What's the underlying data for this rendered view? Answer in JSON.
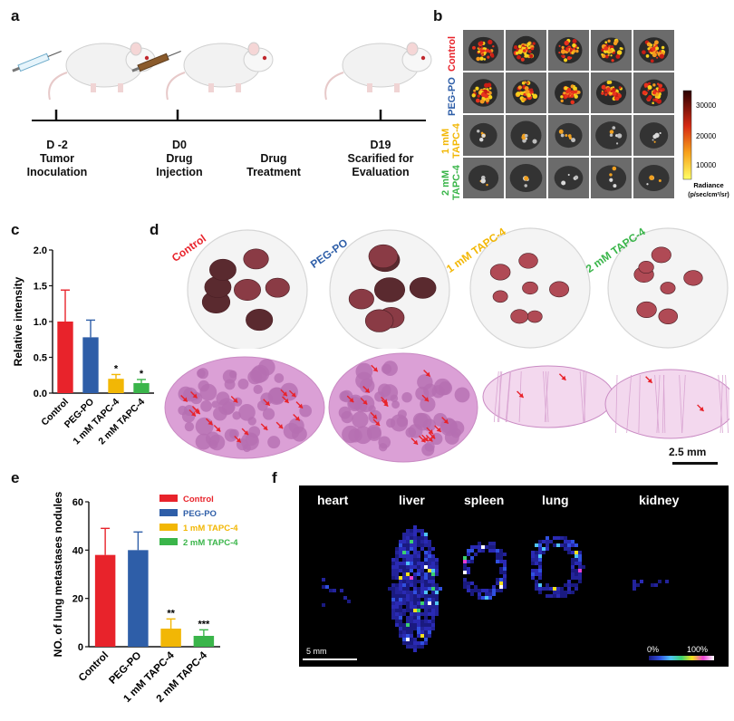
{
  "panels": {
    "a": "a",
    "b": "b",
    "c": "c",
    "d": "d",
    "e": "e",
    "f": "f"
  },
  "timeline": {
    "events": [
      {
        "day": "D -2",
        "desc_line1": "Tumor",
        "desc_line2": "Inoculation"
      },
      {
        "day": "D0",
        "desc_line1": "Drug",
        "desc_line2": "Injection"
      },
      {
        "day": "",
        "desc_line1": "Drug",
        "desc_line2": "Treatment"
      },
      {
        "day": "D19",
        "desc_line1": "Scarified for",
        "desc_line2": "Evaluation"
      }
    ]
  },
  "imaging": {
    "rows": [
      {
        "label": "Control",
        "color": "#e8232b"
      },
      {
        "label": "PEG-PO",
        "color": "#2e5ea8"
      },
      {
        "label": "1 mM TAPC-4",
        "color": "#f2b705"
      },
      {
        "label": "2 mM TAPC-4",
        "color": "#3ab54a"
      }
    ],
    "colorbar": {
      "ticks": [
        "30000",
        "20000",
        "10000"
      ],
      "title_line1": "Radiance",
      "title_line2": "(p/sec/cm²/sr)"
    }
  },
  "groups": [
    {
      "name": "Control",
      "color": "#e8232b"
    },
    {
      "name": "PEG-PO",
      "color": "#2e5ea8"
    },
    {
      "name": "1 mM TAPC-4",
      "color": "#f2b705"
    },
    {
      "name": "2 mM TAPC-4",
      "color": "#3ab54a"
    }
  ],
  "histology": {
    "scale_bar": "2.5 mm"
  },
  "chart_data": [
    {
      "type": "bar",
      "categories": [
        "Control",
        "PEG-PO",
        "1 mM TAPC-4",
        "2 mM TAPC-4"
      ],
      "values": [
        1.0,
        0.78,
        0.2,
        0.14
      ],
      "errors": [
        0.44,
        0.24,
        0.06,
        0.05
      ],
      "significance": [
        "",
        "",
        "*",
        "*"
      ],
      "ylabel": "Relative intensity",
      "ylim": [
        0,
        2.0
      ],
      "yticks": [
        "0.0",
        "0.5",
        "1.0",
        "1.5",
        "2.0"
      ]
    },
    {
      "type": "bar",
      "categories": [
        "Control",
        "PEG-PO",
        "1 mM TAPC-4",
        "2 mM TAPC-4"
      ],
      "values": [
        38,
        40,
        7.5,
        4.5
      ],
      "errors": [
        11,
        7.5,
        4,
        2.5
      ],
      "significance": [
        "",
        "",
        "**",
        "***"
      ],
      "ylabel": "NO. of lung metastases nodules",
      "ylim": [
        0,
        60
      ],
      "yticks": [
        "0",
        "20",
        "40",
        "60"
      ],
      "legend": [
        "Control",
        "PEG-PO",
        "1 mM TAPC-4",
        "2 mM TAPC-4"
      ],
      "legend_position": "top-right"
    }
  ],
  "organ_map": {
    "organs": [
      "heart",
      "liver",
      "spleen",
      "lung",
      "kidney"
    ],
    "scale_bar": "5 mm",
    "colorbar_min": "0%",
    "colorbar_max": "100%"
  }
}
